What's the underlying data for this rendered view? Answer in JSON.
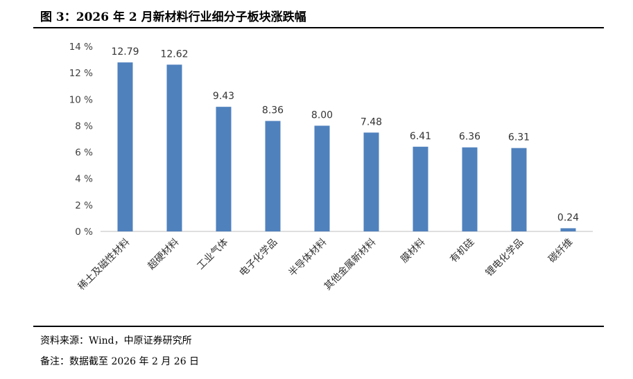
{
  "header": {
    "title": "图 3：2026 年 2 月新材料行业细分子板块涨跌幅"
  },
  "footer": {
    "source": "资料来源：Wind，中原证券研究所",
    "note": "备注：数据截至 2026 年 2 月 26 日"
  },
  "chart_data": {
    "type": "bar",
    "categories": [
      "稀土及磁性材料",
      "超硬材料",
      "工业气体",
      "电子化学品",
      "半导体材料",
      "其他金属新材料",
      "膜材料",
      "有机硅",
      "锂电化学品",
      "碳纤维"
    ],
    "values": [
      12.79,
      12.62,
      9.43,
      8.36,
      8.0,
      7.48,
      6.41,
      6.36,
      6.31,
      0.24
    ],
    "value_labels": [
      "12.79",
      "12.62",
      "9.43",
      "8.36",
      "8.00",
      "7.48",
      "6.41",
      "6.36",
      "6.31",
      "0.24"
    ],
    "ylim": [
      0,
      14
    ],
    "yticks": [
      0,
      2,
      4,
      6,
      8,
      10,
      12,
      14
    ],
    "ytick_labels": [
      "0 %",
      "2 %",
      "4 %",
      "6 %",
      "8 %",
      "10 %",
      "12 %",
      "14 %"
    ],
    "bar_color": "#4f81bd",
    "grid": false,
    "legend": "none"
  }
}
